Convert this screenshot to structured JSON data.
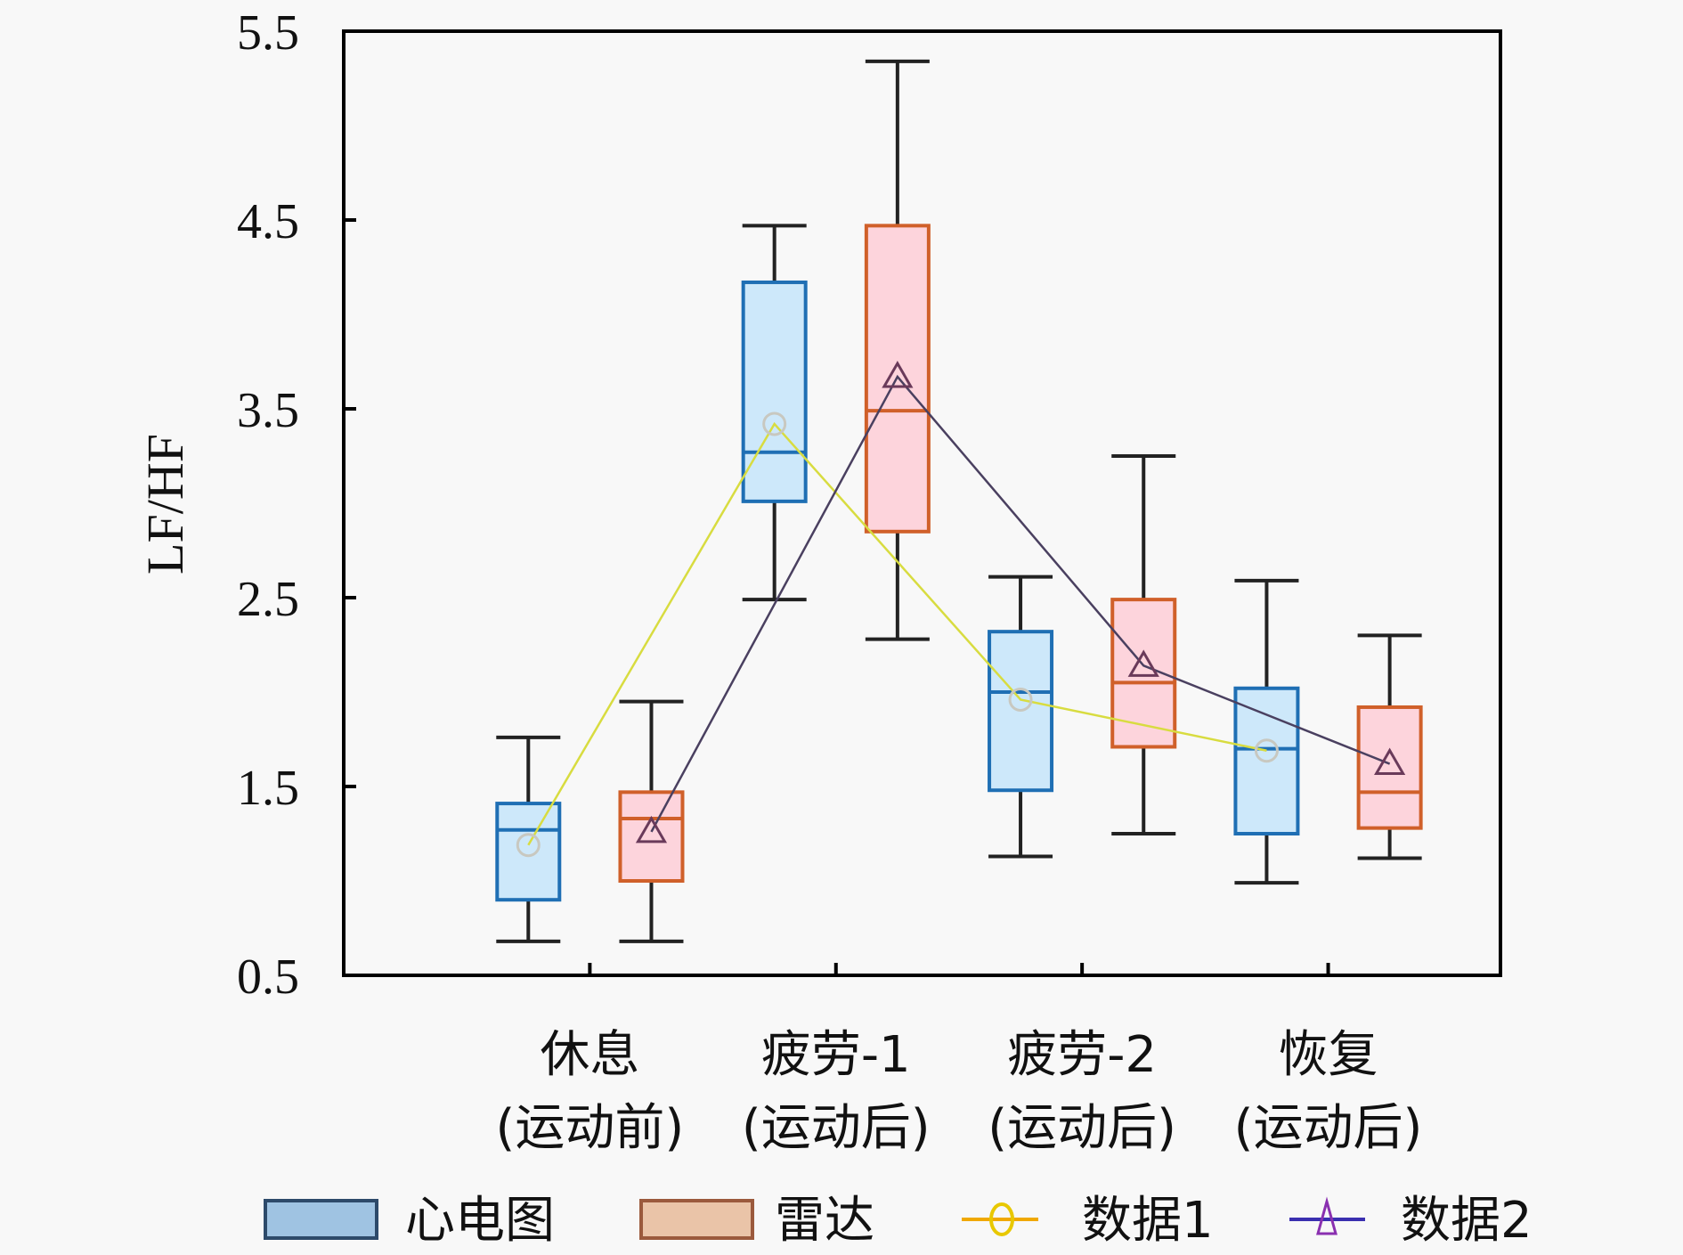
{
  "chart_data": {
    "type": "box",
    "title": "",
    "xlabel": "",
    "ylabel": "LF/HF",
    "ylim": [
      0.5,
      5.5
    ],
    "yticks": [
      "0.5",
      "1.5",
      "2.5",
      "3.5",
      "4.5",
      "5.5"
    ],
    "ytick_values": [
      0.5,
      1.5,
      2.5,
      3.5,
      4.5,
      5.5
    ],
    "xlim": [
      0,
      4.7
    ],
    "grid": false,
    "legend_position": "bottom",
    "categories": [
      {
        "line1": "休息",
        "line2": "(运动前)"
      },
      {
        "line1": "疲劳-1",
        "line2": "(运动后)"
      },
      {
        "line1": "疲劳-2",
        "line2": "(运动后)"
      },
      {
        "line1": "恢复",
        "line2": "(运动后)"
      }
    ],
    "box_series": [
      {
        "name": "心电图",
        "offset": -0.25,
        "fill": "#cde8fa",
        "stroke": "#1f6fb4",
        "legend_fill": "#9fc3e2",
        "legend_stroke": "#2d4a6a",
        "boxes": [
          {
            "min": 0.68,
            "q1": 0.9,
            "median": 1.27,
            "q3": 1.41,
            "max": 1.76
          },
          {
            "min": 2.49,
            "q1": 3.01,
            "median": 3.27,
            "q3": 4.17,
            "max": 4.47
          },
          {
            "min": 1.13,
            "q1": 1.48,
            "median": 2.0,
            "q3": 2.32,
            "max": 2.61
          },
          {
            "min": 0.99,
            "q1": 1.25,
            "median": 1.7,
            "q3": 2.02,
            "max": 2.59
          }
        ]
      },
      {
        "name": "雷达",
        "offset": 0.25,
        "fill": "#fdd4dc",
        "stroke": "#d0602a",
        "legend_fill": "#eac4a8",
        "legend_stroke": "#9b5a3d",
        "boxes": [
          {
            "min": 0.68,
            "q1": 1.0,
            "median": 1.33,
            "q3": 1.47,
            "max": 1.95
          },
          {
            "min": 2.28,
            "q1": 2.85,
            "median": 3.49,
            "q3": 4.47,
            "max": 5.34
          },
          {
            "min": 1.25,
            "q1": 1.71,
            "median": 2.05,
            "q3": 2.49,
            "max": 3.25
          },
          {
            "min": 1.12,
            "q1": 1.28,
            "median": 1.47,
            "q3": 1.92,
            "max": 2.3
          }
        ]
      }
    ],
    "line_series": [
      {
        "name": "数据1",
        "marker": "circle",
        "offset": -0.25,
        "color": "#d8dc40",
        "marker_color": "#c8c8c0",
        "legend_color": "#e8c800",
        "values": [
          1.19,
          3.42,
          1.96,
          1.69
        ]
      },
      {
        "name": "数据2",
        "marker": "triangle",
        "offset": 0.25,
        "color": "#4a4060",
        "marker_color": "#6a3a5a",
        "legend_color": "#3a2fb0",
        "values": [
          1.26,
          3.67,
          2.14,
          1.62
        ]
      }
    ]
  }
}
